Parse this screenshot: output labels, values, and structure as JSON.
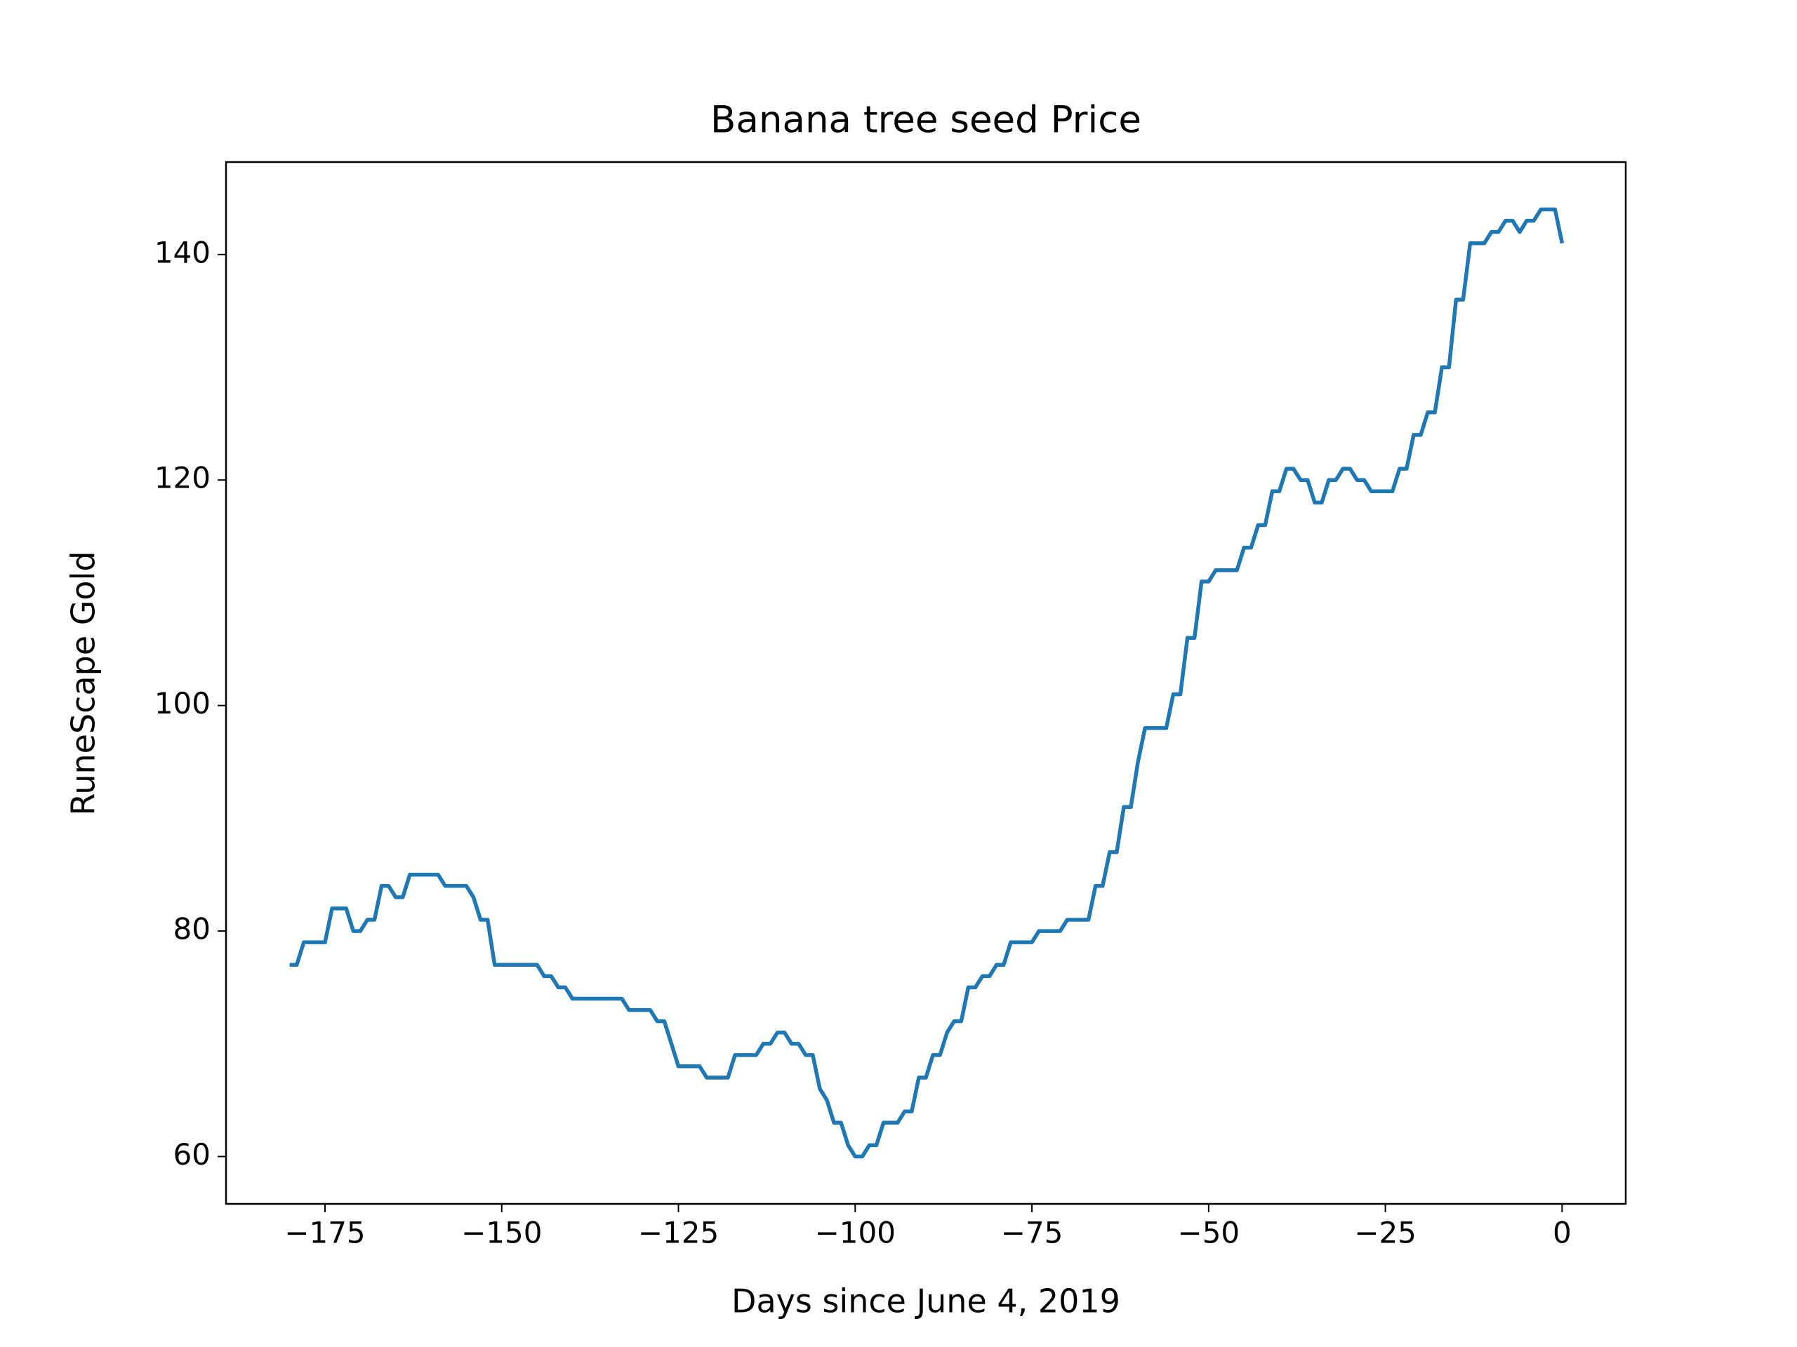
{
  "chart_data": {
    "type": "line",
    "title": "Banana tree seed Price",
    "xlabel": "Days since June 4, 2019",
    "ylabel": "RuneScape Gold",
    "x": [
      -180,
      -179,
      -178,
      -177,
      -176,
      -175,
      -174,
      -173,
      -172,
      -171,
      -170,
      -169,
      -168,
      -167,
      -166,
      -165,
      -164,
      -163,
      -162,
      -161,
      -160,
      -159,
      -158,
      -157,
      -156,
      -155,
      -154,
      -153,
      -152,
      -151,
      -150,
      -149,
      -148,
      -147,
      -146,
      -145,
      -144,
      -143,
      -142,
      -141,
      -140,
      -139,
      -138,
      -137,
      -136,
      -135,
      -134,
      -133,
      -132,
      -131,
      -130,
      -129,
      -128,
      -127,
      -126,
      -125,
      -124,
      -123,
      -122,
      -121,
      -120,
      -119,
      -118,
      -117,
      -116,
      -115,
      -114,
      -113,
      -112,
      -111,
      -110,
      -109,
      -108,
      -107,
      -106,
      -105,
      -104,
      -103,
      -102,
      -101,
      -100,
      -99,
      -98,
      -97,
      -96,
      -95,
      -94,
      -93,
      -92,
      -91,
      -90,
      -89,
      -88,
      -87,
      -86,
      -85,
      -84,
      -83,
      -82,
      -81,
      -80,
      -79,
      -78,
      -77,
      -76,
      -75,
      -74,
      -73,
      -72,
      -71,
      -70,
      -69,
      -68,
      -67,
      -66,
      -65,
      -64,
      -63,
      -62,
      -61,
      -60,
      -59,
      -58,
      -57,
      -56,
      -55,
      -54,
      -53,
      -52,
      -51,
      -50,
      -49,
      -48,
      -47,
      -46,
      -45,
      -44,
      -43,
      -42,
      -41,
      -40,
      -39,
      -38,
      -37,
      -36,
      -35,
      -34,
      -33,
      -32,
      -31,
      -30,
      -29,
      -28,
      -27,
      -26,
      -25,
      -24,
      -23,
      -22,
      -21,
      -20,
      -19,
      -18,
      -17,
      -16,
      -15,
      -14,
      -13,
      -12,
      -11,
      -10,
      -9,
      -8,
      -7,
      -6,
      -5,
      -4,
      -3,
      -2,
      -1,
      0
    ],
    "series": [
      {
        "color": "#1f77b4",
        "values": [
          77,
          77,
          79,
          79,
          79,
          79,
          82,
          82,
          82,
          80,
          80,
          81,
          81,
          84,
          84,
          83,
          83,
          85,
          85,
          85,
          85,
          85,
          84,
          84,
          84,
          84,
          83,
          81,
          81,
          77,
          77,
          77,
          77,
          77,
          77,
          77,
          76,
          76,
          75,
          75,
          74,
          74,
          74,
          74,
          74,
          74,
          74,
          74,
          73,
          73,
          73,
          73,
          72,
          72,
          70,
          68,
          68,
          68,
          68,
          67,
          67,
          67,
          67,
          69,
          69,
          69,
          69,
          70,
          70,
          71,
          71,
          70,
          70,
          69,
          69,
          66,
          65,
          63,
          63,
          61,
          60,
          60,
          61,
          61,
          63,
          63,
          63,
          64,
          64,
          67,
          67,
          69,
          69,
          71,
          72,
          72,
          75,
          75,
          76,
          76,
          77,
          77,
          79,
          79,
          79,
          79,
          80,
          80,
          80,
          80,
          81,
          81,
          81,
          81,
          84,
          84,
          87,
          87,
          91,
          91,
          95,
          98,
          98,
          98,
          98,
          101,
          101,
          106,
          106,
          111,
          111,
          112,
          112,
          112,
          112,
          114,
          114,
          116,
          116,
          119,
          119,
          121,
          121,
          120,
          120,
          118,
          118,
          120,
          120,
          121,
          121,
          120,
          120,
          119,
          119,
          119,
          119,
          121,
          121,
          124,
          124,
          126,
          126,
          130,
          130,
          136,
          136,
          141,
          141,
          141,
          142,
          142,
          143,
          143,
          142,
          143,
          143,
          144,
          144,
          144,
          141
        ]
      }
    ],
    "xlim": [
      -189,
      9
    ],
    "ylim": [
      55.8,
      148.2
    ],
    "xticks": [
      {
        "value": -175,
        "label": "−175"
      },
      {
        "value": -150,
        "label": "−150"
      },
      {
        "value": -125,
        "label": "−125"
      },
      {
        "value": -100,
        "label": "−100"
      },
      {
        "value": -75,
        "label": "−75"
      },
      {
        "value": -50,
        "label": "−50"
      },
      {
        "value": -25,
        "label": "−25"
      },
      0
    ],
    "yticks": [
      60,
      80,
      100,
      120,
      140
    ],
    "grid": false
  }
}
